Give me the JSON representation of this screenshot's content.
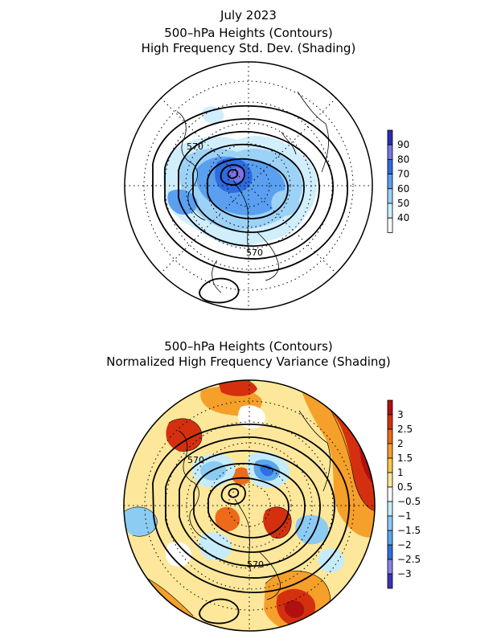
{
  "top_panel": {
    "title_lines": [
      "July 2023",
      "500–hPa Heights (Contours)",
      "High Frequency Std. Dev. (Shading)"
    ],
    "contour_labels": [
      "570",
      "570"
    ],
    "legend": {
      "labels": [
        "90",
        "80",
        "70",
        "60",
        "50",
        "40"
      ],
      "colors": [
        "#2b2bb0",
        "#7a73e8",
        "#2d6be0",
        "#5a9ff0",
        "#9dd2f7",
        "#d0eefc",
        "#ffffff"
      ]
    }
  },
  "bottom_panel": {
    "title_lines": [
      "500–hPa Heights (Contours)",
      "Normalized High Frequency Variance (Shading)"
    ],
    "contour_labels": [
      "570",
      "570"
    ],
    "legend": {
      "labels": [
        "3",
        "2.5",
        "2",
        "1.5",
        "1",
        "0.5",
        "−0.5",
        "−1",
        "−1.5",
        "−2",
        "−2.5",
        "−3"
      ],
      "colors": [
        "#b01010",
        "#d43010",
        "#ec6a18",
        "#f5a02a",
        "#fbc94a",
        "#fde79a",
        "#ffffff",
        "#c6ecfb",
        "#8ccbf2",
        "#5aa6ec",
        "#2f6fe0",
        "#8a82e8",
        "#3b33b8"
      ]
    }
  }
}
